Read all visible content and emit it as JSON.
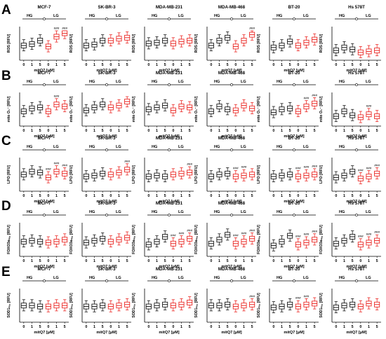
{
  "figure": {
    "rows": [
      {
        "letter": "A",
        "ylabel": "ROS [RFU]"
      },
      {
        "letter": "B",
        "ylabel": "mito O₂⁻ [RFU]"
      },
      {
        "letter": "C",
        "ylabel": "LPO [RFU]"
      },
      {
        "letter": "D",
        "ylabel": "FOXO3aₙᵤ꜀ [RFU]"
      },
      {
        "letter": "E",
        "ylabel": "SOD1ₙᵤ꜀ [RFU]"
      }
    ],
    "cell_lines": [
      "MCF-7",
      "SK-BR-3",
      "MDA-MB-231",
      "MDA-MB-468",
      "BT-20",
      "Hs 578T"
    ],
    "group_labels": [
      "HG",
      "LG"
    ],
    "x_ticks": [
      "0",
      "1",
      "5",
      "0",
      "1",
      "5"
    ],
    "xlabel": "mitQ7 [μM]",
    "colors": {
      "hg": "#000000",
      "lg": "#e8130f",
      "text": "#000000"
    }
  },
  "chart_data": {
    "type": "box",
    "layout": "5 rows x 6 columns of box plots",
    "categories": [
      "0",
      "1",
      "5",
      "0",
      "1",
      "5"
    ],
    "groups": [
      {
        "name": "HG",
        "color": "#000000"
      },
      {
        "name": "LG",
        "color": "#e8130f"
      }
    ],
    "panels": [
      {
        "row": "A",
        "column": "MCF-7",
        "medians": [
          30,
          33,
          40,
          28,
          48,
          55
        ],
        "annotations": [
          "",
          "",
          "",
          "",
          "###",
          "###"
        ]
      },
      {
        "row": "A",
        "column": "SK-BR-3",
        "medians": [
          30,
          32,
          40,
          40,
          44,
          46
        ],
        "annotations": [
          "",
          "",
          "",
          "",
          "",
          ""
        ]
      },
      {
        "row": "A",
        "column": "MDA-MB-231",
        "medians": [
          34,
          36,
          40,
          34,
          38,
          40
        ],
        "annotations": [
          "",
          "",
          "",
          "",
          "",
          ""
        ]
      },
      {
        "row": "A",
        "column": "MDA-MB-468",
        "medians": [
          30,
          40,
          46,
          28,
          40,
          52
        ],
        "annotations": [
          "",
          "",
          "",
          "",
          "",
          "###"
        ]
      },
      {
        "row": "A",
        "column": "BT-20",
        "medians": [
          26,
          30,
          38,
          30,
          36,
          42
        ],
        "annotations": [
          "",
          "",
          "",
          "",
          "",
          ""
        ]
      },
      {
        "row": "A",
        "column": "Hs 578T",
        "medians": [
          20,
          26,
          22,
          16,
          18,
          20
        ],
        "annotations": [
          "",
          "",
          "",
          "",
          "",
          ""
        ]
      },
      {
        "row": "B",
        "column": "MCF-7",
        "medians": [
          30,
          36,
          38,
          30,
          44,
          40
        ],
        "annotations": [
          "",
          "",
          "",
          "",
          "###",
          ""
        ]
      },
      {
        "row": "B",
        "column": "SK-BR-3",
        "medians": [
          32,
          38,
          44,
          38,
          42,
          50
        ],
        "annotations": [
          "",
          "",
          "",
          "",
          "",
          ""
        ]
      },
      {
        "row": "B",
        "column": "MDA-MB-231",
        "medians": [
          34,
          38,
          42,
          32,
          40,
          38
        ],
        "annotations": [
          "",
          "",
          "",
          "",
          "",
          ""
        ]
      },
      {
        "row": "B",
        "column": "MDA-MB-468",
        "medians": [
          30,
          40,
          34,
          32,
          42,
          36
        ],
        "annotations": [
          "",
          "",
          "",
          "",
          "",
          ""
        ]
      },
      {
        "row": "B",
        "column": "BT-20",
        "medians": [
          28,
          34,
          36,
          30,
          40,
          46
        ],
        "annotations": [
          "",
          "",
          "",
          "",
          "###",
          "###"
        ]
      },
      {
        "row": "B",
        "column": "Hs 578T",
        "medians": [
          20,
          30,
          22,
          18,
          24,
          20
        ],
        "annotations": [
          "",
          "",
          "",
          "",
          "###",
          ""
        ]
      },
      {
        "row": "C",
        "column": "MCF-7",
        "medians": [
          34,
          40,
          38,
          28,
          40,
          36
        ],
        "annotations": [
          "",
          "",
          "",
          "###",
          "###",
          "###"
        ]
      },
      {
        "row": "C",
        "column": "SK-BR-3",
        "medians": [
          30,
          32,
          36,
          34,
          38,
          44
        ],
        "annotations": [
          "",
          "",
          "",
          "",
          "",
          "###"
        ]
      },
      {
        "row": "C",
        "column": "MDA-MB-231",
        "medians": [
          30,
          32,
          30,
          34,
          36,
          38
        ],
        "annotations": [
          "",
          "",
          "",
          "",
          "",
          "###"
        ]
      },
      {
        "row": "C",
        "column": "MDA-MB-468",
        "medians": [
          30,
          34,
          36,
          30,
          32,
          34
        ],
        "annotations": [
          "",
          "",
          "",
          "###",
          "###",
          ""
        ]
      },
      {
        "row": "C",
        "column": "BT-20",
        "medians": [
          30,
          32,
          34,
          30,
          32,
          34
        ],
        "annotations": [
          "",
          "",
          "",
          "###",
          "###",
          "###"
        ]
      },
      {
        "row": "C",
        "column": "Hs 578T",
        "medians": [
          28,
          32,
          40,
          26,
          30,
          36
        ],
        "annotations": [
          "",
          "",
          "",
          "###",
          "###",
          "###"
        ]
      },
      {
        "row": "D",
        "column": "MCF-7",
        "medians": [
          30,
          32,
          30,
          28,
          30,
          34
        ],
        "annotations": [
          "",
          "",
          "",
          "",
          "",
          ""
        ]
      },
      {
        "row": "D",
        "column": "SK-BR-3",
        "medians": [
          28,
          32,
          36,
          30,
          34,
          38
        ],
        "annotations": [
          "",
          "",
          "",
          "",
          "",
          ""
        ]
      },
      {
        "row": "D",
        "column": "MDA-MB-231",
        "medians": [
          24,
          30,
          40,
          26,
          30,
          36
        ],
        "annotations": [
          "",
          "",
          "",
          "###",
          "###",
          "###"
        ]
      },
      {
        "row": "D",
        "column": "MDA-MB-468",
        "medians": [
          26,
          34,
          44,
          26,
          30,
          36
        ],
        "annotations": [
          "",
          "",
          "",
          "###",
          "###",
          "###"
        ]
      },
      {
        "row": "D",
        "column": "BT-20",
        "medians": [
          22,
          30,
          42,
          24,
          28,
          34
        ],
        "annotations": [
          "",
          "",
          "",
          "###",
          "###",
          "###"
        ]
      },
      {
        "row": "D",
        "column": "Hs 578T",
        "medians": [
          26,
          32,
          40,
          24,
          28,
          32
        ],
        "annotations": [
          "",
          "",
          "",
          "###",
          "###",
          "###"
        ]
      },
      {
        "row": "E",
        "column": "MCF-7",
        "medians": [
          34,
          34,
          32,
          32,
          34,
          34
        ],
        "annotations": [
          "",
          "",
          "",
          "",
          "",
          ""
        ]
      },
      {
        "row": "E",
        "column": "SK-BR-3",
        "medians": [
          32,
          32,
          34,
          32,
          34,
          36
        ],
        "annotations": [
          "",
          "",
          "",
          "",
          "",
          ""
        ]
      },
      {
        "row": "E",
        "column": "MDA-MB-231",
        "medians": [
          32,
          34,
          36,
          34,
          36,
          40
        ],
        "annotations": [
          "",
          "",
          "",
          "",
          "",
          ""
        ]
      },
      {
        "row": "E",
        "column": "MDA-MB-468",
        "medians": [
          34,
          34,
          36,
          32,
          34,
          36
        ],
        "annotations": [
          "",
          "",
          "",
          "",
          "",
          "###"
        ]
      },
      {
        "row": "E",
        "column": "BT-20",
        "medians": [
          30,
          32,
          36,
          32,
          36,
          38
        ],
        "annotations": [
          "",
          "",
          "",
          "###",
          "###",
          ""
        ]
      },
      {
        "row": "E",
        "column": "Hs 578T",
        "medians": [
          30,
          34,
          36,
          32,
          38,
          36
        ],
        "annotations": [
          "",
          "",
          "",
          "",
          "",
          ""
        ]
      }
    ]
  }
}
